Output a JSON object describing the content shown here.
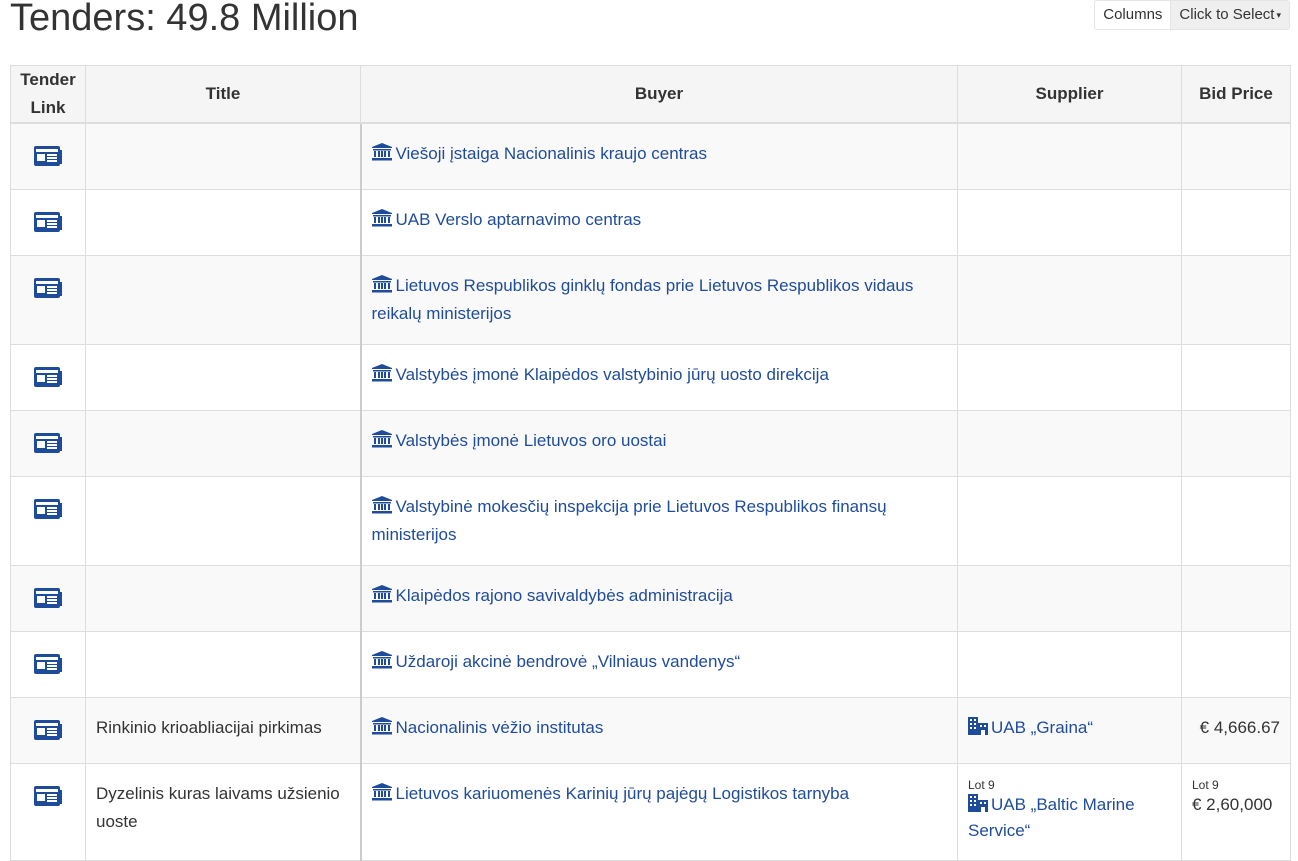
{
  "page": {
    "title": "Tenders: 49.8 Million",
    "columns_label": "Columns",
    "select_label": "Click to Select",
    "caret": "▾"
  },
  "colors": {
    "link": "#1f4c9a",
    "header_bg": "#f5f5f5",
    "row_alt": "#f9f9f9"
  },
  "table": {
    "headers": {
      "link": "Tender Link",
      "title": "Title",
      "buyer": "Buyer",
      "supplier": "Supplier",
      "bid_price": "Bid Price"
    },
    "rows": [
      {
        "title": "",
        "buyer": "Viešoji įstaiga Nacionalinis kraujo centras",
        "supplier": "",
        "supplier_lot": "",
        "price": "",
        "price_lot": ""
      },
      {
        "title": "",
        "buyer": "UAB Verslo aptarnavimo centras",
        "supplier": "",
        "supplier_lot": "",
        "price": "",
        "price_lot": ""
      },
      {
        "title": "",
        "buyer": "Lietuvos Respublikos ginklų fondas prie Lietuvos Respublikos vidaus reikalų ministerijos",
        "supplier": "",
        "supplier_lot": "",
        "price": "",
        "price_lot": ""
      },
      {
        "title": "",
        "buyer": "Valstybės įmonė Klaipėdos valstybinio jūrų uosto direkcija",
        "supplier": "",
        "supplier_lot": "",
        "price": "",
        "price_lot": ""
      },
      {
        "title": "",
        "buyer": "Valstybės įmonė Lietuvos oro uostai",
        "supplier": "",
        "supplier_lot": "",
        "price": "",
        "price_lot": ""
      },
      {
        "title": "",
        "buyer": "Valstybinė mokesčių inspekcija prie Lietuvos Respublikos finansų ministerijos",
        "supplier": "",
        "supplier_lot": "",
        "price": "",
        "price_lot": ""
      },
      {
        "title": "",
        "buyer": "Klaipėdos rajono savivaldybės administracija",
        "supplier": "",
        "supplier_lot": "",
        "price": "",
        "price_lot": ""
      },
      {
        "title": "",
        "buyer": "Uždaroji akcinė bendrovė „Vilniaus vandenys“",
        "supplier": "",
        "supplier_lot": "",
        "price": "",
        "price_lot": ""
      },
      {
        "title": "Rinkinio krioabliacijai pirkimas",
        "buyer": "Nacionalinis vėžio institutas",
        "supplier": "UAB „Graina“",
        "supplier_lot": "",
        "price": "€ 4,666.67",
        "price_lot": ""
      },
      {
        "title": "Dyzelinis kuras laivams užsienio uoste",
        "buyer": "Lietuvos kariuomenės Karinių jūrų pajėgų Logistikos tarnyba",
        "supplier": "UAB „Baltic Marine Service“",
        "supplier_lot": "Lot 9",
        "price": "€ 2,60,000",
        "price_lot": "Lot 9"
      }
    ]
  },
  "icons": {
    "tender": "tender-document-icon",
    "buyer": "bank-icon",
    "supplier": "building-icon"
  }
}
